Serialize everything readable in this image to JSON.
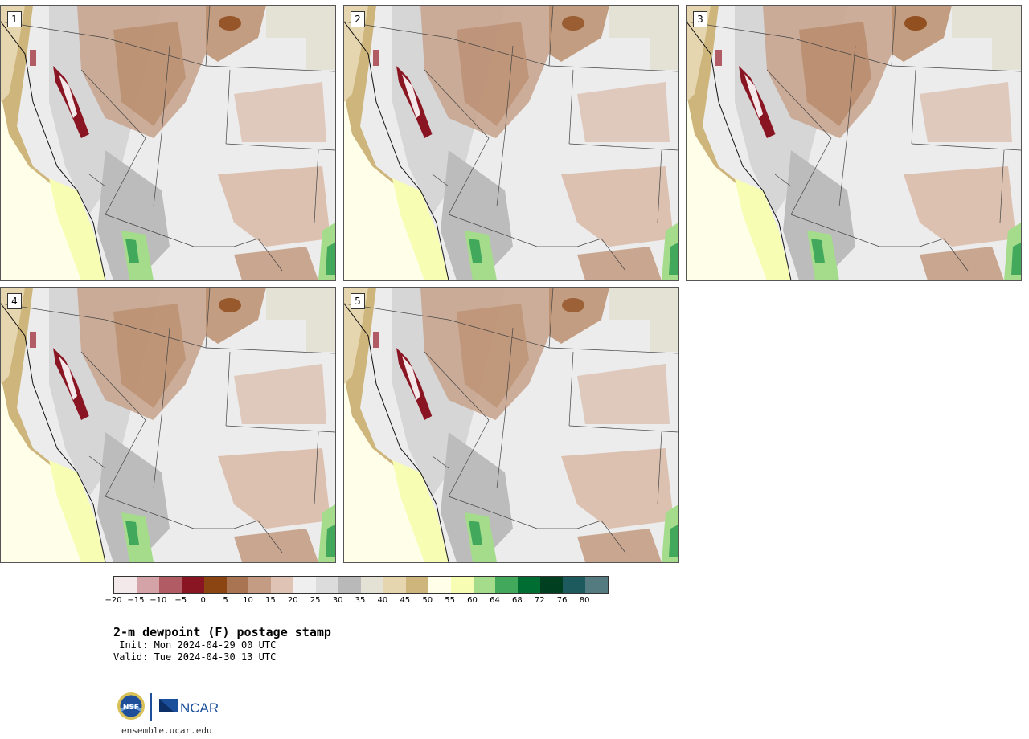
{
  "panels": [
    {
      "label": "1",
      "variant": 1.0
    },
    {
      "label": "2",
      "variant": 0.9
    },
    {
      "label": "3",
      "variant": 1.1
    },
    {
      "label": "4",
      "variant": 0.95
    },
    {
      "label": "5",
      "variant": 0.85
    }
  ],
  "colorbar": {
    "levels": [
      "−20",
      "−15",
      "−10",
      "−5",
      "0",
      "5",
      "10",
      "15",
      "20",
      "25",
      "30",
      "35",
      "40",
      "45",
      "50",
      "55",
      "60",
      "64",
      "68",
      "72",
      "76",
      "80"
    ],
    "colors": [
      "#f4e9ea",
      "#d4a3a8",
      "#b15c64",
      "#8a1522",
      "#8b4513",
      "#a97452",
      "#c49c84",
      "#dfc3b4",
      "#efefef",
      "#dcdcdc",
      "#b9b9b9",
      "#e3e2d4",
      "#e6d6b0",
      "#cdb57c",
      "#fffee8",
      "#f7fdb2",
      "#a4dc8c",
      "#42a85c",
      "#006d33",
      "#003f1f",
      "#1d5a5d",
      "#537b80"
    ]
  },
  "title": "2-m dewpoint (F) postage stamp",
  "init": " Init: Mon 2024-04-29 00 UTC",
  "valid": "Valid: Tue 2024-04-30 13 UTC",
  "logos": {
    "nsf": "NSF",
    "ncar": "NCAR"
  },
  "url": "ensemble.ucar.edu"
}
